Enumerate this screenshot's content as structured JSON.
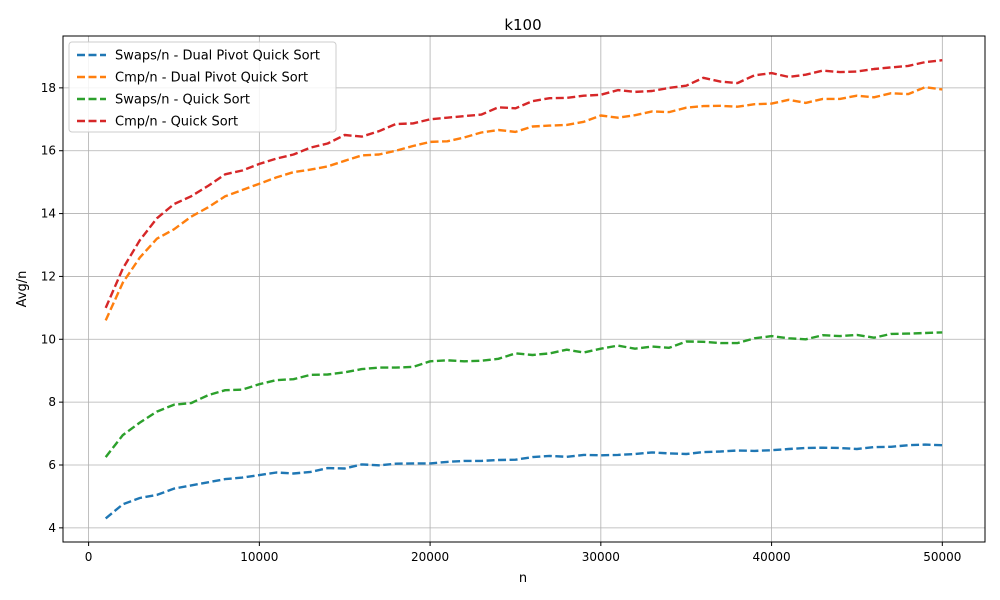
{
  "chart_data": {
    "type": "line",
    "title": "k100",
    "xlabel": "n",
    "ylabel": "Avg/n",
    "xlim": [
      -1500,
      52500
    ],
    "ylim": [
      3.55,
      19.65
    ],
    "xticks": [
      0,
      10000,
      20000,
      30000,
      40000,
      50000
    ],
    "xtick_labels": [
      "0",
      "10000",
      "20000",
      "30000",
      "40000",
      "50000"
    ],
    "yticks": [
      4,
      6,
      8,
      10,
      12,
      14,
      16,
      18
    ],
    "ytick_labels": [
      "4",
      "6",
      "8",
      "10",
      "12",
      "14",
      "16",
      "18"
    ],
    "grid": true,
    "legend_position": "top-left",
    "x": [
      1000,
      2000,
      3000,
      4000,
      5000,
      6000,
      7000,
      8000,
      9000,
      10000,
      11000,
      12000,
      13000,
      14000,
      15000,
      16000,
      17000,
      18000,
      19000,
      20000,
      21000,
      22000,
      23000,
      24000,
      25000,
      26000,
      27000,
      28000,
      29000,
      30000,
      31000,
      32000,
      33000,
      34000,
      35000,
      36000,
      37000,
      38000,
      39000,
      40000,
      41000,
      42000,
      43000,
      44000,
      45000,
      46000,
      47000,
      48000,
      49000,
      50000
    ],
    "series": [
      {
        "name": "Swaps/n - Dual Pivot Quick Sort",
        "color": "#1f77b4",
        "values": [
          4.3,
          4.75,
          4.95,
          5.05,
          5.25,
          5.35,
          5.45,
          5.55,
          5.6,
          5.68,
          5.76,
          5.73,
          5.78,
          5.9,
          5.89,
          6.02,
          5.99,
          6.04,
          6.05,
          6.05,
          6.1,
          6.13,
          6.13,
          6.16,
          6.17,
          6.25,
          6.29,
          6.26,
          6.32,
          6.31,
          6.32,
          6.35,
          6.4,
          6.37,
          6.35,
          6.41,
          6.43,
          6.46,
          6.45,
          6.47,
          6.51,
          6.54,
          6.55,
          6.54,
          6.51,
          6.57,
          6.58,
          6.63,
          6.65,
          6.63
        ]
      },
      {
        "name": "Cmp/n - Dual Pivot Quick Sort",
        "color": "#ff7f0e",
        "values": [
          10.6,
          11.8,
          12.6,
          13.2,
          13.5,
          13.9,
          14.2,
          14.55,
          14.75,
          14.95,
          15.15,
          15.32,
          15.4,
          15.5,
          15.68,
          15.85,
          15.88,
          16.0,
          16.15,
          16.28,
          16.3,
          16.42,
          16.58,
          16.66,
          16.6,
          16.77,
          16.8,
          16.82,
          16.92,
          17.12,
          17.05,
          17.13,
          17.25,
          17.23,
          17.37,
          17.42,
          17.43,
          17.4,
          17.48,
          17.5,
          17.62,
          17.52,
          17.65,
          17.65,
          17.75,
          17.7,
          17.83,
          17.8,
          18.02,
          17.95
        ]
      },
      {
        "name": "Swaps/n - Quick Sort",
        "color": "#2ca02c",
        "values": [
          6.25,
          6.95,
          7.35,
          7.7,
          7.92,
          7.97,
          8.22,
          8.38,
          8.4,
          8.57,
          8.7,
          8.73,
          8.87,
          8.88,
          8.95,
          9.05,
          9.1,
          9.1,
          9.12,
          9.3,
          9.33,
          9.3,
          9.32,
          9.38,
          9.55,
          9.5,
          9.55,
          9.67,
          9.58,
          9.7,
          9.8,
          9.7,
          9.77,
          9.73,
          9.93,
          9.92,
          9.88,
          9.88,
          10.03,
          10.1,
          10.03,
          10.0,
          10.13,
          10.1,
          10.14,
          10.05,
          10.17,
          10.18,
          10.2,
          10.22
        ]
      },
      {
        "name": "Cmp/n - Quick Sort",
        "color": "#d62728",
        "values": [
          11.0,
          12.25,
          13.15,
          13.85,
          14.3,
          14.55,
          14.88,
          15.25,
          15.37,
          15.58,
          15.75,
          15.88,
          16.1,
          16.23,
          16.5,
          16.45,
          16.62,
          16.85,
          16.87,
          17.0,
          17.05,
          17.1,
          17.15,
          17.38,
          17.35,
          17.58,
          17.67,
          17.68,
          17.75,
          17.78,
          17.93,
          17.87,
          17.9,
          18.0,
          18.07,
          18.32,
          18.2,
          18.15,
          18.4,
          18.47,
          18.35,
          18.42,
          18.55,
          18.5,
          18.52,
          18.6,
          18.65,
          18.7,
          18.82,
          18.88
        ]
      }
    ]
  }
}
